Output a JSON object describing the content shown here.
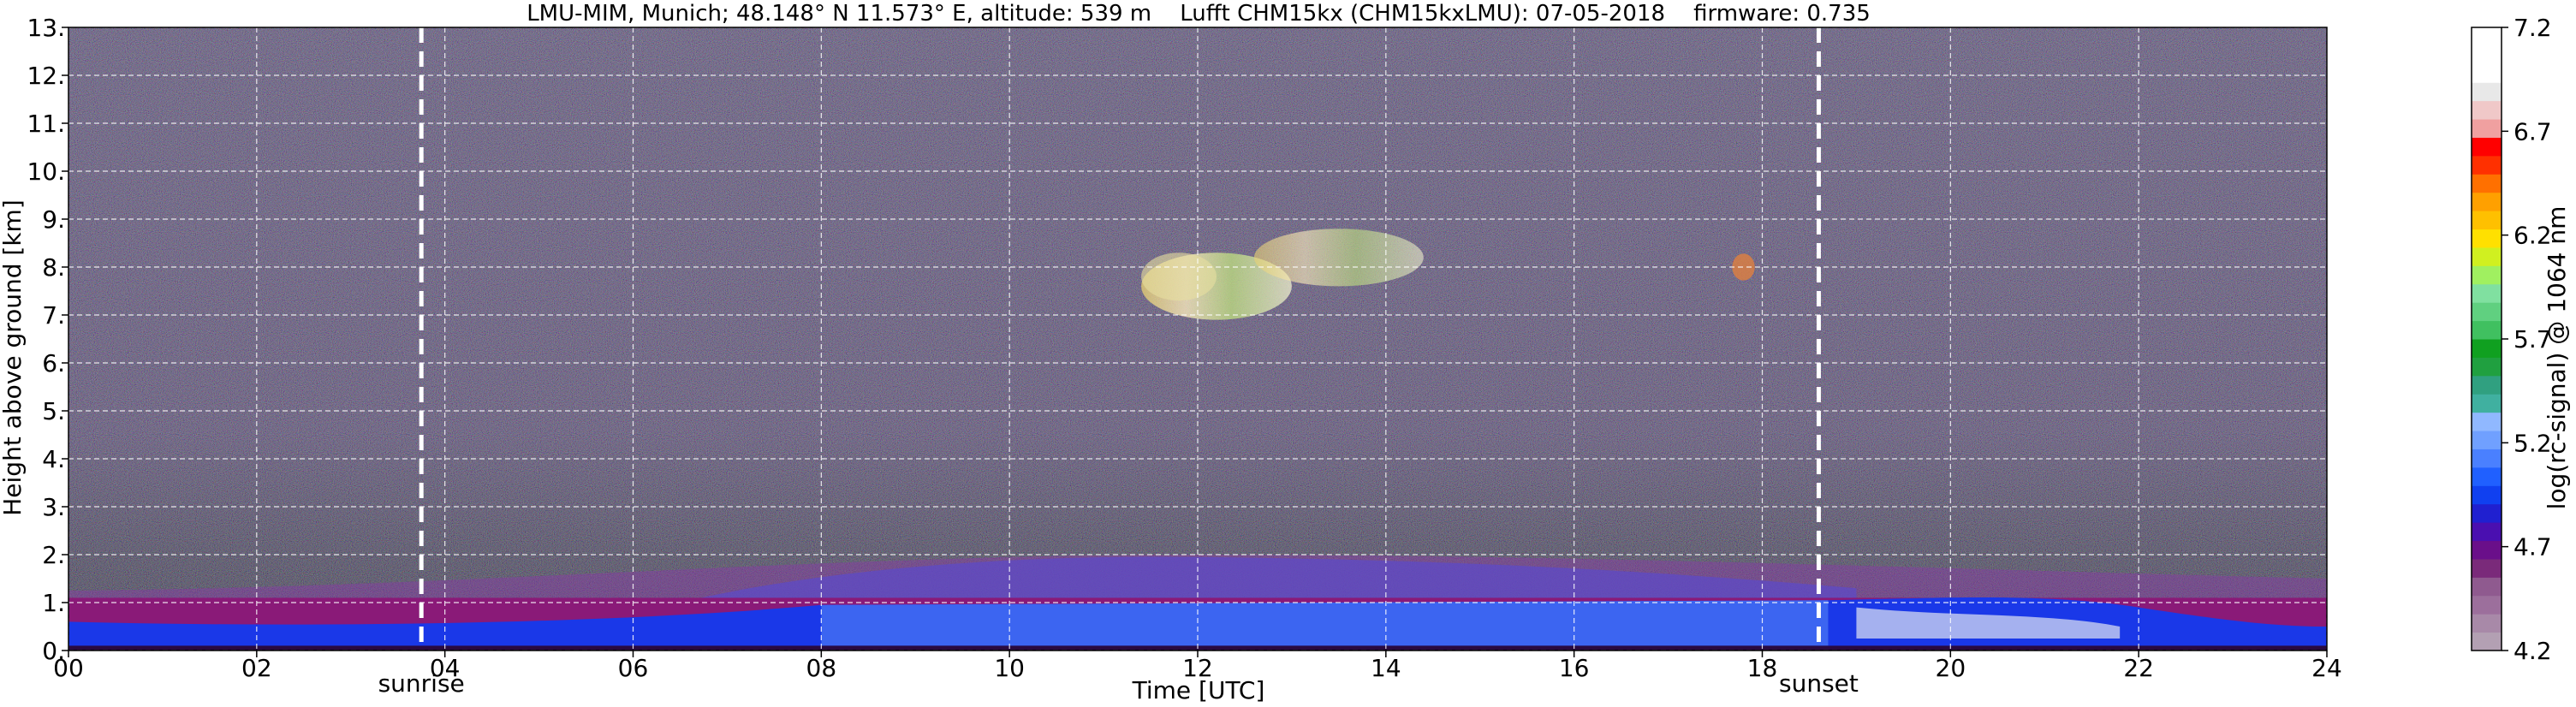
{
  "chart_data": {
    "type": "heatmap",
    "title": "LMU-MIM, Munich; 48.148° N 11.573° E, altitude: 539 m    Lufft CHM15kx (CHM15kxLMU): 07-05-2018    firmware: 0.735",
    "xlabel": "Time [UTC]",
    "ylabel": "Height above ground [km]",
    "xlim": [
      0,
      24
    ],
    "ylim": [
      0,
      13
    ],
    "x_ticks": [
      "00",
      "02",
      "04",
      "06",
      "08",
      "10",
      "12",
      "14",
      "16",
      "18",
      "20",
      "22",
      "24"
    ],
    "x_tick_values": [
      0,
      2,
      4,
      6,
      8,
      10,
      12,
      14,
      16,
      18,
      20,
      22,
      24
    ],
    "y_ticks": [
      "0.",
      "1.",
      "2.",
      "3.",
      "4.",
      "5.",
      "6.",
      "7.",
      "8.",
      "9.",
      "10.",
      "11.",
      "12.",
      "13."
    ],
    "y_tick_values": [
      0,
      1,
      2,
      3,
      4,
      5,
      6,
      7,
      8,
      9,
      10,
      11,
      12,
      13
    ],
    "grid": true,
    "colorbar": {
      "label": "log(rc-signal) @ 1064 nm",
      "range": [
        4.2,
        7.2
      ],
      "ticks": [
        "4.2",
        "4.7",
        "5.2",
        "5.7",
        "6.2",
        "6.7",
        "7.2"
      ],
      "tick_values": [
        4.2,
        4.7,
        5.2,
        5.7,
        6.2,
        6.7,
        7.2
      ],
      "colors": [
        "#b3a0b3",
        "#a889a8",
        "#9c6f9c",
        "#8f5a8f",
        "#7a2a7a",
        "#6a0f8a",
        "#4a0fb0",
        "#2020d0",
        "#1040f0",
        "#2060ff",
        "#4a80ff",
        "#70a0ff",
        "#90b8ff",
        "#40b0a0",
        "#30a080",
        "#20a040",
        "#10a020",
        "#40c060",
        "#60d080",
        "#80e0a0",
        "#a0f060",
        "#d0f020",
        "#ffe000",
        "#ffc000",
        "#ffa000",
        "#ff7000",
        "#ff3000",
        "#ff0000",
        "#f0a0a0",
        "#f0c8c8",
        "#e8e8e8",
        "#ffffff",
        "#ffffff",
        "#ffffff"
      ]
    },
    "events": [
      {
        "label": "sunrise",
        "time": 3.75
      },
      {
        "label": "sunset",
        "time": 18.6
      }
    ],
    "layers": [
      {
        "name": "",
        "time_start": 0,
        "time_end": 24,
        "height_bottom_km": 0.0,
        "height_top_km": 1.1,
        "log_signal": 5.0
      },
      {
        "name": "",
        "time_start": 6.5,
        "time_end": 19,
        "height_bottom_km": 1.0,
        "height_top_km": 2.0,
        "log_signal": 5.3
      },
      {
        "name": "",
        "time_start": 11.5,
        "time_end": 14.5,
        "height_bottom_km": 7.0,
        "height_top_km": 8.7,
        "log_signal": 6.2
      },
      {
        "name": "",
        "time_start": 17.7,
        "time_end": 17.9,
        "height_bottom_km": 7.7,
        "height_top_km": 8.3,
        "log_signal": 6.5
      }
    ]
  }
}
